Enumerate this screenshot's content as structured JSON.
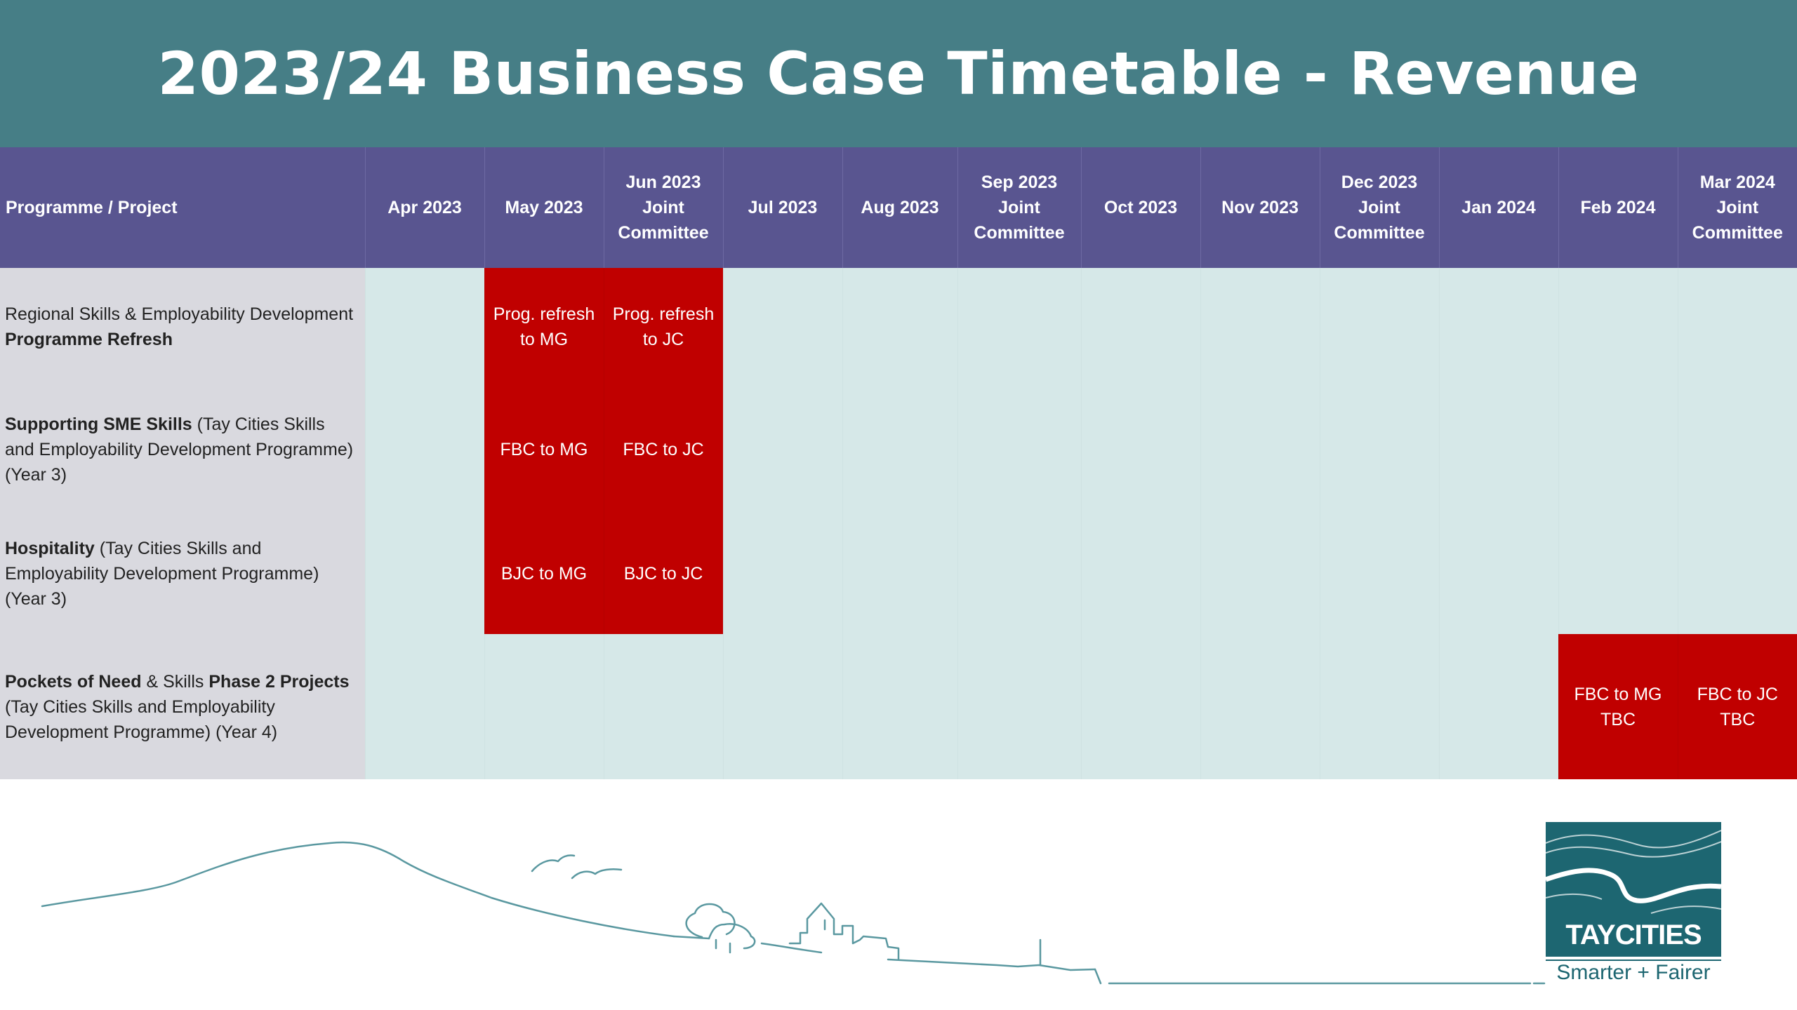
{
  "title": "2023/24 Business Case Timetable - Revenue",
  "columns": {
    "project": "Programme / Project",
    "months": [
      {
        "line1": "Apr 2023",
        "line2": "",
        "line3": ""
      },
      {
        "line1": "May 2023",
        "line2": "",
        "line3": ""
      },
      {
        "line1": "Jun 2023",
        "line2": "Joint",
        "line3": "Committee"
      },
      {
        "line1": "Jul 2023",
        "line2": "",
        "line3": ""
      },
      {
        "line1": "Aug 2023",
        "line2": "",
        "line3": ""
      },
      {
        "line1": "Sep 2023",
        "line2": "Joint",
        "line3": "Committee"
      },
      {
        "line1": "Oct 2023",
        "line2": "",
        "line3": ""
      },
      {
        "line1": "Nov 2023",
        "line2": "",
        "line3": ""
      },
      {
        "line1": "Dec 2023",
        "line2": "Joint",
        "line3": "Committee"
      },
      {
        "line1": "Jan 2024",
        "line2": "",
        "line3": ""
      },
      {
        "line1": "Feb 2024",
        "line2": "",
        "line3": ""
      },
      {
        "line1": "Mar 2024",
        "line2": "Joint",
        "line3": "Committee"
      }
    ]
  },
  "rows": [
    {
      "project_parts": [
        {
          "text": "Regional Skills & Employability Development ",
          "bold": false
        },
        {
          "text": "Programme Refresh",
          "bold": true
        }
      ],
      "milestones": {
        "may": {
          "line1": "Prog. refresh",
          "line2": "to MG"
        },
        "jun": {
          "line1": "Prog. refresh",
          "line2": "to JC"
        }
      }
    },
    {
      "project_parts": [
        {
          "text": "Supporting SME Skills",
          "bold": true
        },
        {
          "text": " (Tay Cities Skills and Employability Development Programme) (Year 3)",
          "bold": false
        }
      ],
      "milestones": {
        "may": {
          "line1": "FBC to MG",
          "line2": ""
        },
        "jun": {
          "line1": "FBC to JC",
          "line2": ""
        }
      }
    },
    {
      "project_parts": [
        {
          "text": "Hospitality",
          "bold": true
        },
        {
          "text": " (Tay Cities Skills and Employability Development Programme) (Year 3)",
          "bold": false
        }
      ],
      "milestones": {
        "may": {
          "line1": "BJC to MG",
          "line2": ""
        },
        "jun": {
          "line1": "BJC to JC",
          "line2": ""
        }
      }
    },
    {
      "project_parts": [
        {
          "text": "Pockets of Need",
          "bold": true
        },
        {
          "text": " & Skills ",
          "bold": false
        },
        {
          "text": "Phase 2 Projects",
          "bold": true
        },
        {
          "text": " (Tay Cities Skills and Employability Development Programme) (Year 4)",
          "bold": false
        }
      ],
      "milestones": {
        "feb": {
          "line1": "FBC to MG",
          "line2": "TBC"
        },
        "mar": {
          "line1": "FBC to JC",
          "line2": "TBC"
        }
      }
    }
  ],
  "logo": {
    "brand": "TAYCITIES",
    "tagline": "Smarter + Fairer"
  },
  "colors": {
    "title_bar": "#467e86",
    "header": "#595590",
    "project_cell": "#d9d9df",
    "empty_cell": "#d6e8e8",
    "milestone": "#c00000",
    "brand_teal": "#1d6671"
  }
}
